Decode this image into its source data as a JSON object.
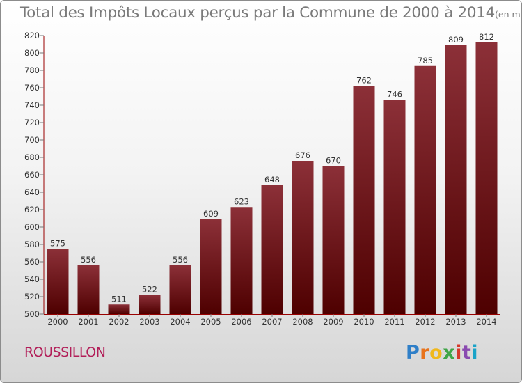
{
  "title": {
    "main": "Total des Impôts Locaux perçus par la Commune de 2000 à 2014",
    "unit": "(en milliers d'€)"
  },
  "commune": "ROUSSILLON",
  "logo": {
    "letters": [
      "P",
      "r",
      "o",
      "x",
      "i",
      "t",
      "i"
    ]
  },
  "colors": {
    "bar_top": "#8c3038",
    "bar_bottom": "#4e0000",
    "axis": "#990000",
    "commune_text": "#b21e58"
  },
  "chart_data": {
    "type": "bar",
    "title": "Total des Impôts Locaux perçus par la Commune de 2000 à 2014",
    "xlabel": "",
    "ylabel": "",
    "ylim": [
      500,
      820
    ],
    "ytick_step": 20,
    "grid": false,
    "categories": [
      "2000",
      "2001",
      "2002",
      "2003",
      "2004",
      "2005",
      "2006",
      "2007",
      "2008",
      "2009",
      "2010",
      "2011",
      "2012",
      "2013",
      "2014"
    ],
    "values": [
      575,
      556,
      511,
      522,
      556,
      609,
      623,
      648,
      676,
      670,
      762,
      746,
      785,
      809,
      812
    ],
    "yticks": [
      "500",
      "520",
      "540",
      "560",
      "580",
      "600",
      "620",
      "640",
      "660",
      "680",
      "700",
      "720",
      "740",
      "760",
      "780",
      "800",
      "820"
    ]
  }
}
